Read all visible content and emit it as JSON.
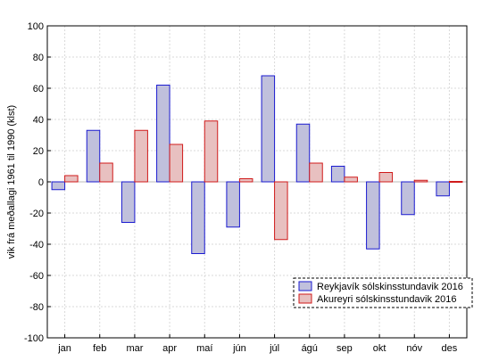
{
  "chart_data": {
    "type": "bar",
    "categories": [
      "jan",
      "feb",
      "mar",
      "apr",
      "maí",
      "jún",
      "júl",
      "ágú",
      "sep",
      "okt",
      "nóv",
      "des"
    ],
    "series": [
      {
        "name": "Reykjavík sólskinsstundavik 2016",
        "fill": "#c0c0dc",
        "stroke": "#1a1ad0",
        "values": [
          -5,
          33,
          -26,
          62,
          -46,
          -29,
          68,
          37,
          10,
          -43,
          -21,
          -9
        ]
      },
      {
        "name": "Akureyri sólskinsstundavik 2016",
        "fill": "#e8c0c0",
        "stroke": "#d01a1a",
        "values": [
          4,
          12,
          33,
          24,
          39,
          2,
          -37,
          12,
          3,
          6,
          1,
          0
        ]
      }
    ],
    "ylabel": "vik frá meðallagi 1961 til 1990 (klst)",
    "xlabel": "",
    "ylim": [
      -100,
      100
    ],
    "yticks": [
      -100,
      -80,
      -60,
      -40,
      -20,
      0,
      20,
      40,
      60,
      80,
      100
    ],
    "grid": true,
    "legend_position": "bottom-right"
  }
}
